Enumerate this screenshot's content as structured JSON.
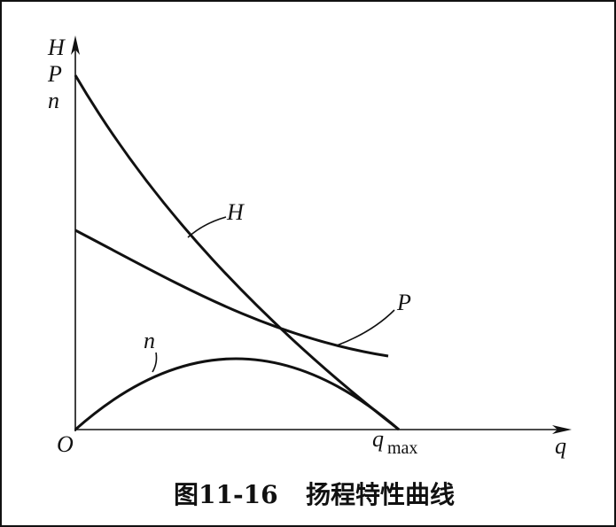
{
  "axes": {
    "y_labels": [
      "H",
      "P",
      "n"
    ],
    "origin": "O",
    "x_label": "q",
    "x_mark": "q",
    "x_mark_sub": "max"
  },
  "curves": [
    {
      "label": "H"
    },
    {
      "label": "P"
    },
    {
      "label": "n"
    }
  ],
  "caption": {
    "number": "图11-16",
    "title": "扬程特性曲线"
  }
}
